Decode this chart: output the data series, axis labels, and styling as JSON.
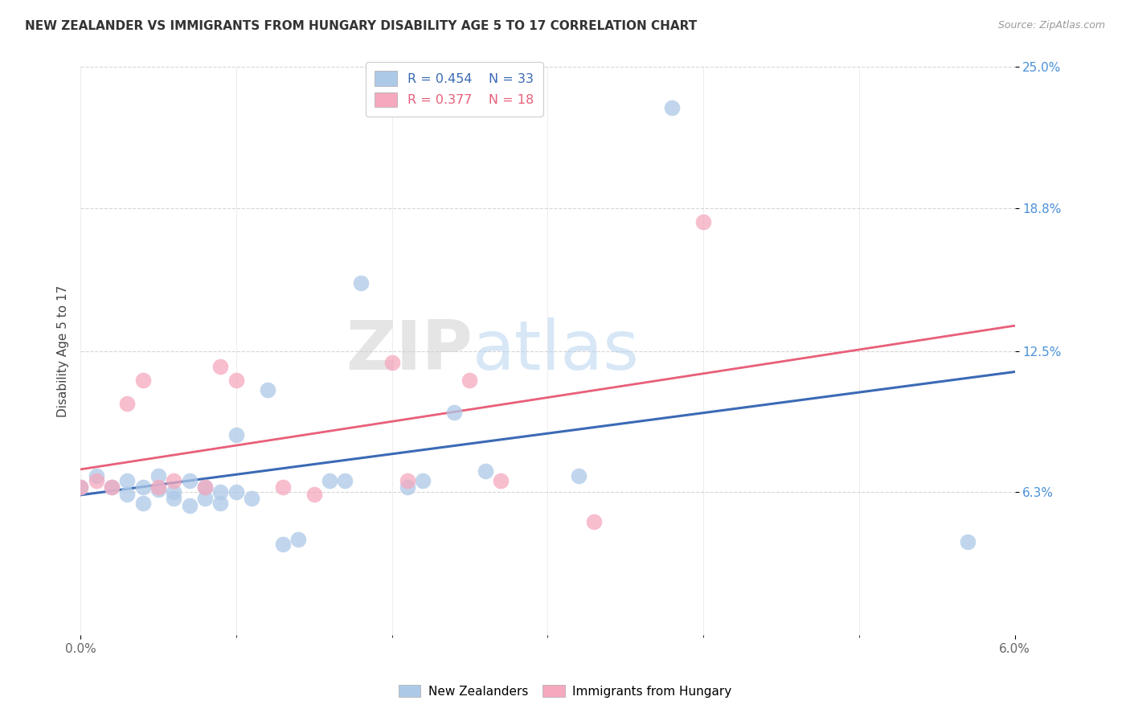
{
  "title": "NEW ZEALANDER VS IMMIGRANTS FROM HUNGARY DISABILITY AGE 5 TO 17 CORRELATION CHART",
  "source": "Source: ZipAtlas.com",
  "ylabel": "Disability Age 5 to 17",
  "x_min": 0.0,
  "x_max": 0.06,
  "y_min": 0.0,
  "y_max": 0.25,
  "y_ticks": [
    0.063,
    0.125,
    0.188,
    0.25
  ],
  "y_tick_labels": [
    "6.3%",
    "12.5%",
    "18.8%",
    "25.0%"
  ],
  "nz_color": "#adc9e8",
  "hungary_color": "#f5a8be",
  "nz_line_color": "#3b6ab5",
  "hungary_line_color": "#e8607a",
  "nz_R": 0.454,
  "nz_N": 33,
  "hungary_R": 0.377,
  "hungary_N": 18,
  "legend_label_nz": "New Zealanders",
  "legend_label_hungary": "Immigrants from Hungary",
  "watermark_zip": "ZIP",
  "watermark_atlas": "atlas",
  "nz_x": [
    0.0,
    0.001,
    0.002,
    0.003,
    0.003,
    0.004,
    0.004,
    0.005,
    0.005,
    0.006,
    0.006,
    0.007,
    0.007,
    0.008,
    0.008,
    0.009,
    0.009,
    0.01,
    0.01,
    0.011,
    0.012,
    0.013,
    0.014,
    0.016,
    0.017,
    0.018,
    0.021,
    0.022,
    0.024,
    0.026,
    0.032,
    0.038,
    0.057
  ],
  "nz_y": [
    0.065,
    0.07,
    0.065,
    0.062,
    0.068,
    0.058,
    0.065,
    0.064,
    0.07,
    0.063,
    0.06,
    0.057,
    0.068,
    0.06,
    0.065,
    0.058,
    0.063,
    0.088,
    0.063,
    0.06,
    0.108,
    0.04,
    0.042,
    0.068,
    0.068,
    0.155,
    0.065,
    0.068,
    0.098,
    0.072,
    0.07,
    0.232,
    0.041
  ],
  "hungary_x": [
    0.0,
    0.001,
    0.002,
    0.003,
    0.004,
    0.005,
    0.006,
    0.008,
    0.009,
    0.01,
    0.013,
    0.015,
    0.02,
    0.021,
    0.025,
    0.027,
    0.033,
    0.04
  ],
  "hungary_y": [
    0.065,
    0.068,
    0.065,
    0.102,
    0.112,
    0.065,
    0.068,
    0.065,
    0.118,
    0.112,
    0.065,
    0.062,
    0.12,
    0.068,
    0.112,
    0.068,
    0.05,
    0.182
  ]
}
